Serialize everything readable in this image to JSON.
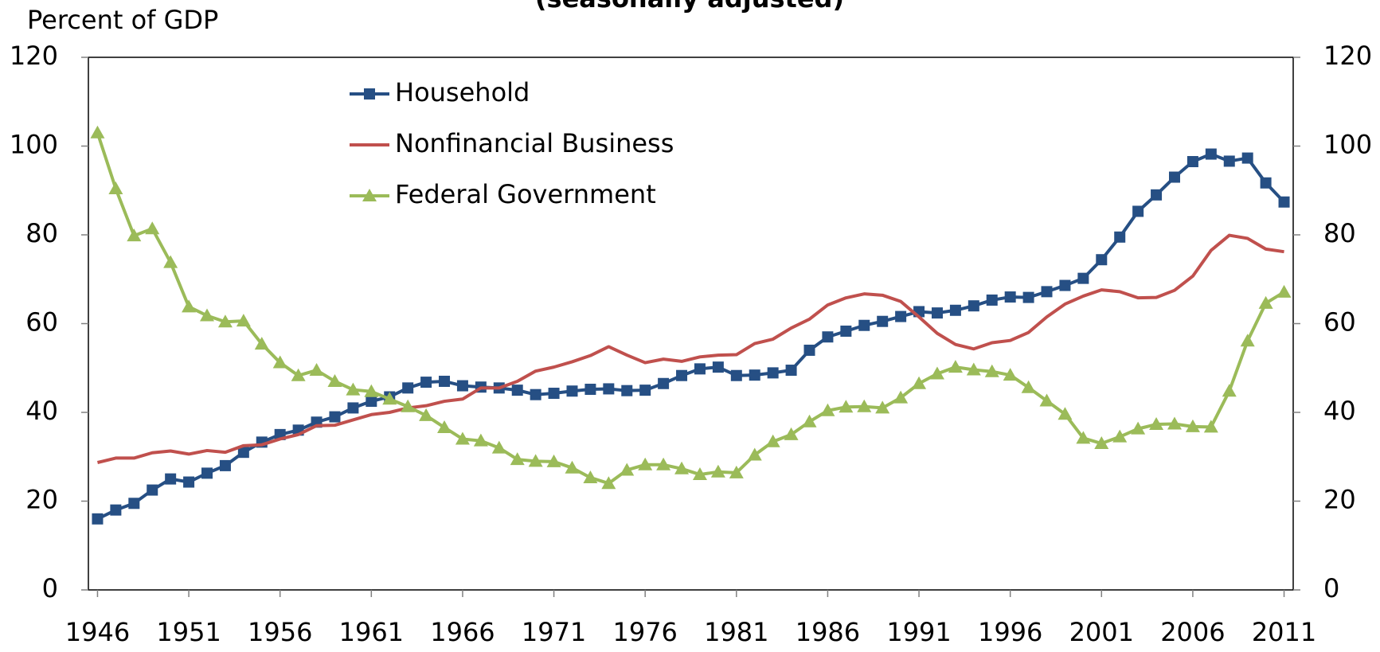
{
  "chart_data": {
    "type": "line",
    "subtitle": "(seasonally adjusted)",
    "y_label": "Percent of GDP",
    "x": [
      1946,
      1947,
      1948,
      1949,
      1950,
      1951,
      1952,
      1953,
      1954,
      1955,
      1956,
      1957,
      1958,
      1959,
      1960,
      1961,
      1962,
      1963,
      1964,
      1965,
      1966,
      1967,
      1968,
      1969,
      1970,
      1971,
      1972,
      1973,
      1974,
      1975,
      1976,
      1977,
      1978,
      1979,
      1980,
      1981,
      1982,
      1983,
      1984,
      1985,
      1986,
      1987,
      1988,
      1989,
      1990,
      1991,
      1992,
      1993,
      1994,
      1995,
      1996,
      1997,
      1998,
      1999,
      2000,
      2001,
      2002,
      2003,
      2004,
      2005,
      2006,
      2007,
      2008,
      2009,
      2010,
      2011
    ],
    "xlim": [
      1945.5,
      2011.5
    ],
    "xticks": [
      1946,
      1951,
      1956,
      1961,
      1966,
      1971,
      1976,
      1981,
      1986,
      1991,
      1996,
      2001,
      2006,
      2011
    ],
    "ylim": [
      0,
      120
    ],
    "yticks": [
      0,
      20,
      40,
      60,
      80,
      100,
      120
    ],
    "y2lim": [
      0,
      120
    ],
    "y2ticks": [
      0,
      20,
      40,
      60,
      80,
      100,
      120
    ],
    "series": [
      {
        "name": "Household",
        "color": "#264f84",
        "marker": "square",
        "values": [
          16,
          18,
          19.5,
          22.5,
          25,
          24.3,
          26.3,
          28,
          31,
          33.3,
          35,
          36,
          37.8,
          39,
          41,
          42.5,
          43.5,
          45.5,
          46.8,
          47,
          46,
          45.7,
          45.5,
          45,
          44,
          44.3,
          44.8,
          45.2,
          45.3,
          44.9,
          45,
          46.5,
          48.3,
          49.8,
          50.2,
          48.3,
          48.4,
          48.9,
          49.5,
          54,
          57,
          58.3,
          59.6,
          60.5,
          61.6,
          62.7,
          62.4,
          63,
          64,
          65.3,
          66,
          65.9,
          67.2,
          68.6,
          70.2,
          74.4,
          79.5,
          85.3,
          89,
          93,
          96.5,
          98.2,
          96.6,
          97.3,
          91.7,
          87.4
        ]
      },
      {
        "name": "Nonfinancial Business",
        "color": "#c0504d",
        "marker": "none",
        "values": [
          28.7,
          29.7,
          29.7,
          30.9,
          31.3,
          30.6,
          31.4,
          31,
          32.5,
          32.7,
          34,
          35,
          37,
          37.1,
          38.3,
          39.5,
          40,
          41,
          41.5,
          42.5,
          43,
          45.5,
          45.5,
          47,
          49.3,
          50.2,
          51.4,
          52.8,
          54.8,
          52.9,
          51.2,
          52,
          51.5,
          52.5,
          52.9,
          53,
          55.5,
          56.5,
          59,
          61,
          64.2,
          65.8,
          66.7,
          66.4,
          65,
          61.5,
          57.8,
          55.3,
          54.3,
          55.7,
          56.2,
          58,
          61.5,
          64.4,
          66.2,
          67.6,
          67.2,
          65.8,
          65.9,
          67.5,
          70.7,
          76.5,
          79.9,
          79.2,
          76.8,
          76.2
        ]
      },
      {
        "name": "Federal Government",
        "color": "#9bbb59",
        "marker": "triangle",
        "values": [
          103,
          90.4,
          79.8,
          81.4,
          73.8,
          63.8,
          61.8,
          60.4,
          60.6,
          55.4,
          51.2,
          48.3,
          49.5,
          47,
          45.1,
          44.7,
          43,
          41.3,
          39.3,
          36.6,
          34,
          33.6,
          32,
          29.4,
          29,
          28.9,
          27.5,
          25.3,
          24,
          27,
          28.2,
          28.2,
          27.3,
          26,
          26.6,
          26.4,
          30.4,
          33.4,
          35,
          37.9,
          40.4,
          41.2,
          41.3,
          41,
          43.3,
          46.5,
          48.7,
          50.2,
          49.6,
          49.2,
          48.4,
          45.6,
          42.6,
          39.6,
          34.2,
          33,
          34.5,
          36.3,
          37.3,
          37.4,
          36.8,
          36.7,
          44.8,
          56.1,
          64.6,
          67.1
        ]
      }
    ]
  }
}
